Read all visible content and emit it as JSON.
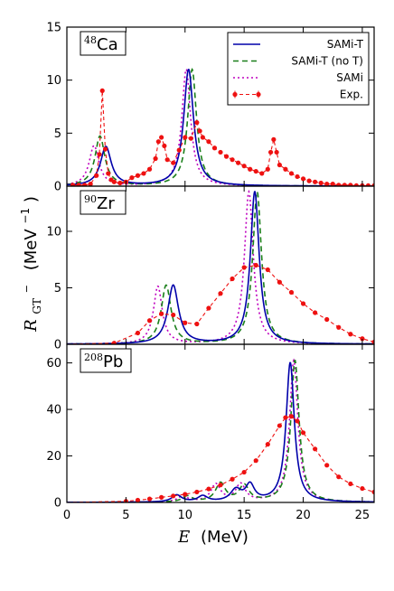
{
  "colors": {
    "samit": "#0000aa",
    "samit_not": "#1a7f1a",
    "sami": "#bf00bf",
    "exp": "#ee1111"
  },
  "axes": {
    "xlabel_var": "E",
    "xlabel_unit": "(MeV)",
    "ylabel_var": "R",
    "ylabel_sub": "GT",
    "ylabel_sup": "−",
    "ylabel_unit": "(MeV",
    "ylabel_unit_sup": "−1",
    "ylabel_unit_close": ")"
  },
  "legend": {
    "entries": [
      {
        "label": "SAMi-T",
        "style": "solid",
        "color_key": "samit"
      },
      {
        "label": "SAMi-T (no T)",
        "style": "dashed",
        "color_key": "samit_not"
      },
      {
        "label": "SAMi",
        "style": "dotted",
        "color_key": "sami"
      },
      {
        "label": "Exp.",
        "style": "exp",
        "color_key": "exp"
      }
    ]
  },
  "chart_data": [
    {
      "type": "line",
      "panel": "Ca",
      "label_sup": "48",
      "label": "Ca",
      "xlim": [
        0,
        26
      ],
      "ylim": [
        0,
        15
      ],
      "yticks": [
        0,
        5,
        10,
        15
      ],
      "xticks": [
        0,
        5,
        10,
        15,
        20,
        25
      ],
      "x_tick_labels_visible": false,
      "models": {
        "samit": [
          {
            "c": 3.3,
            "g": 0.55,
            "h": 3.7
          },
          {
            "c": 10.3,
            "g": 0.5,
            "h": 11.0
          }
        ],
        "samit_not": [
          {
            "c": 2.8,
            "g": 0.5,
            "h": 4.7
          },
          {
            "c": 10.6,
            "g": 0.45,
            "h": 11.0
          }
        ],
        "sami": [
          {
            "c": 2.3,
            "g": 0.5,
            "h": 3.8
          },
          {
            "c": 10.1,
            "g": 0.45,
            "h": 11.0
          }
        ]
      },
      "exp": [
        [
          0.5,
          0.1
        ],
        [
          1.0,
          0.1
        ],
        [
          1.5,
          0.1
        ],
        [
          2.0,
          0.2
        ],
        [
          2.5,
          1.0
        ],
        [
          2.75,
          3.0
        ],
        [
          3.0,
          9.0
        ],
        [
          3.25,
          3.5
        ],
        [
          3.5,
          1.2
        ],
        [
          3.75,
          0.6
        ],
        [
          4.0,
          0.4
        ],
        [
          4.5,
          0.3
        ],
        [
          5.0,
          0.4
        ],
        [
          5.5,
          0.8
        ],
        [
          6.0,
          1.0
        ],
        [
          6.5,
          1.2
        ],
        [
          7.0,
          1.6
        ],
        [
          7.5,
          2.6
        ],
        [
          7.75,
          4.2
        ],
        [
          8.0,
          4.6
        ],
        [
          8.25,
          3.8
        ],
        [
          8.5,
          2.5
        ],
        [
          9.0,
          2.2
        ],
        [
          9.5,
          3.4
        ],
        [
          10.0,
          4.6
        ],
        [
          10.5,
          4.5
        ],
        [
          11.0,
          6.0
        ],
        [
          11.25,
          5.2
        ],
        [
          11.5,
          4.6
        ],
        [
          12.0,
          4.2
        ],
        [
          12.5,
          3.6
        ],
        [
          13.0,
          3.2
        ],
        [
          13.5,
          2.8
        ],
        [
          14.0,
          2.5
        ],
        [
          14.5,
          2.2
        ],
        [
          15.0,
          1.9
        ],
        [
          15.5,
          1.6
        ],
        [
          16.0,
          1.4
        ],
        [
          16.5,
          1.2
        ],
        [
          17.0,
          1.6
        ],
        [
          17.25,
          3.2
        ],
        [
          17.5,
          4.4
        ],
        [
          17.75,
          3.2
        ],
        [
          18.0,
          2.0
        ],
        [
          18.5,
          1.6
        ],
        [
          19.0,
          1.2
        ],
        [
          19.5,
          0.9
        ],
        [
          20.0,
          0.7
        ],
        [
          20.5,
          0.5
        ],
        [
          21.0,
          0.4
        ],
        [
          21.5,
          0.3
        ],
        [
          22.0,
          0.2
        ],
        [
          22.5,
          0.2
        ],
        [
          23.0,
          0.1
        ],
        [
          23.5,
          0.1
        ],
        [
          24.0,
          0.1
        ],
        [
          24.5,
          0.05
        ],
        [
          25.0,
          0.05
        ],
        [
          25.5,
          0.05
        ],
        [
          26.0,
          0.05
        ]
      ]
    },
    {
      "type": "line",
      "panel": "Zr",
      "label_sup": "90",
      "label": "Zr",
      "xlim": [
        0,
        26
      ],
      "ylim": [
        0,
        14
      ],
      "yticks": [
        0,
        5,
        10
      ],
      "xticks": [
        0,
        5,
        10,
        15,
        20,
        25
      ],
      "x_tick_labels_visible": false,
      "models": {
        "samit": [
          {
            "c": 9.0,
            "g": 0.55,
            "h": 5.2
          },
          {
            "c": 15.9,
            "g": 0.45,
            "h": 13.5
          }
        ],
        "samit_not": [
          {
            "c": 8.4,
            "g": 0.5,
            "h": 5.2
          },
          {
            "c": 16.1,
            "g": 0.45,
            "h": 13.5
          }
        ],
        "sami": [
          {
            "c": 7.7,
            "g": 0.45,
            "h": 5.1
          },
          {
            "c": 15.4,
            "g": 0.45,
            "h": 13.5
          }
        ]
      },
      "exp": [
        [
          0.0,
          0.0
        ],
        [
          4.0,
          0.1
        ],
        [
          6.0,
          1.0
        ],
        [
          7.0,
          2.1
        ],
        [
          8.0,
          2.7
        ],
        [
          9.0,
          2.6
        ],
        [
          10.0,
          1.9
        ],
        [
          11.0,
          1.8
        ],
        [
          12.0,
          3.2
        ],
        [
          13.0,
          4.5
        ],
        [
          14.0,
          5.8
        ],
        [
          15.0,
          6.8
        ],
        [
          16.0,
          7.0
        ],
        [
          17.0,
          6.6
        ],
        [
          18.0,
          5.5
        ],
        [
          19.0,
          4.6
        ],
        [
          20.0,
          3.6
        ],
        [
          21.0,
          2.8
        ],
        [
          22.0,
          2.2
        ],
        [
          23.0,
          1.5
        ],
        [
          24.0,
          0.9
        ],
        [
          25.0,
          0.5
        ],
        [
          26.0,
          0.2
        ]
      ]
    },
    {
      "type": "line",
      "panel": "Pb",
      "label_sup": "208",
      "label": "Pb",
      "xlim": [
        0,
        26
      ],
      "ylim": [
        0,
        68
      ],
      "yticks": [
        0,
        20,
        40,
        60
      ],
      "xticks": [
        0,
        5,
        10,
        15,
        20,
        25
      ],
      "x_tick_labels_visible": true,
      "models": {
        "samit": [
          {
            "c": 9.3,
            "g": 0.5,
            "h": 3.0
          },
          {
            "c": 11.5,
            "g": 0.5,
            "h": 2.5
          },
          {
            "c": 14.3,
            "g": 0.55,
            "h": 5.0
          },
          {
            "c": 15.5,
            "g": 0.45,
            "h": 7.0
          },
          {
            "c": 18.9,
            "g": 0.42,
            "h": 60.0
          }
        ],
        "samit_not": [
          {
            "c": 10.2,
            "g": 0.5,
            "h": 2.5
          },
          {
            "c": 13.0,
            "g": 0.5,
            "h": 8.0
          },
          {
            "c": 15.0,
            "g": 0.5,
            "h": 7.0
          },
          {
            "c": 19.3,
            "g": 0.42,
            "h": 61.0
          }
        ],
        "sami": [
          {
            "c": 9.8,
            "g": 0.5,
            "h": 2.5
          },
          {
            "c": 12.6,
            "g": 0.5,
            "h": 7.5
          },
          {
            "c": 14.7,
            "g": 0.5,
            "h": 7.5
          },
          {
            "c": 19.2,
            "g": 0.42,
            "h": 61.0
          }
        ]
      },
      "exp": [
        [
          0.0,
          0.0
        ],
        [
          5.0,
          0.5
        ],
        [
          6.0,
          1.0
        ],
        [
          7.0,
          1.5
        ],
        [
          8.0,
          2.2
        ],
        [
          9.0,
          2.8
        ],
        [
          10.0,
          3.5
        ],
        [
          11.0,
          4.5
        ],
        [
          12.0,
          5.8
        ],
        [
          13.0,
          7.5
        ],
        [
          14.0,
          10.0
        ],
        [
          15.0,
          13.0
        ],
        [
          16.0,
          18.0
        ],
        [
          17.0,
          25.0
        ],
        [
          18.0,
          33.0
        ],
        [
          18.5,
          36.5
        ],
        [
          19.0,
          37.0
        ],
        [
          19.5,
          35.0
        ],
        [
          20.0,
          30.0
        ],
        [
          21.0,
          23.0
        ],
        [
          22.0,
          16.0
        ],
        [
          23.0,
          11.0
        ],
        [
          24.0,
          8.0
        ],
        [
          25.0,
          6.0
        ],
        [
          26.0,
          4.5
        ]
      ]
    }
  ]
}
